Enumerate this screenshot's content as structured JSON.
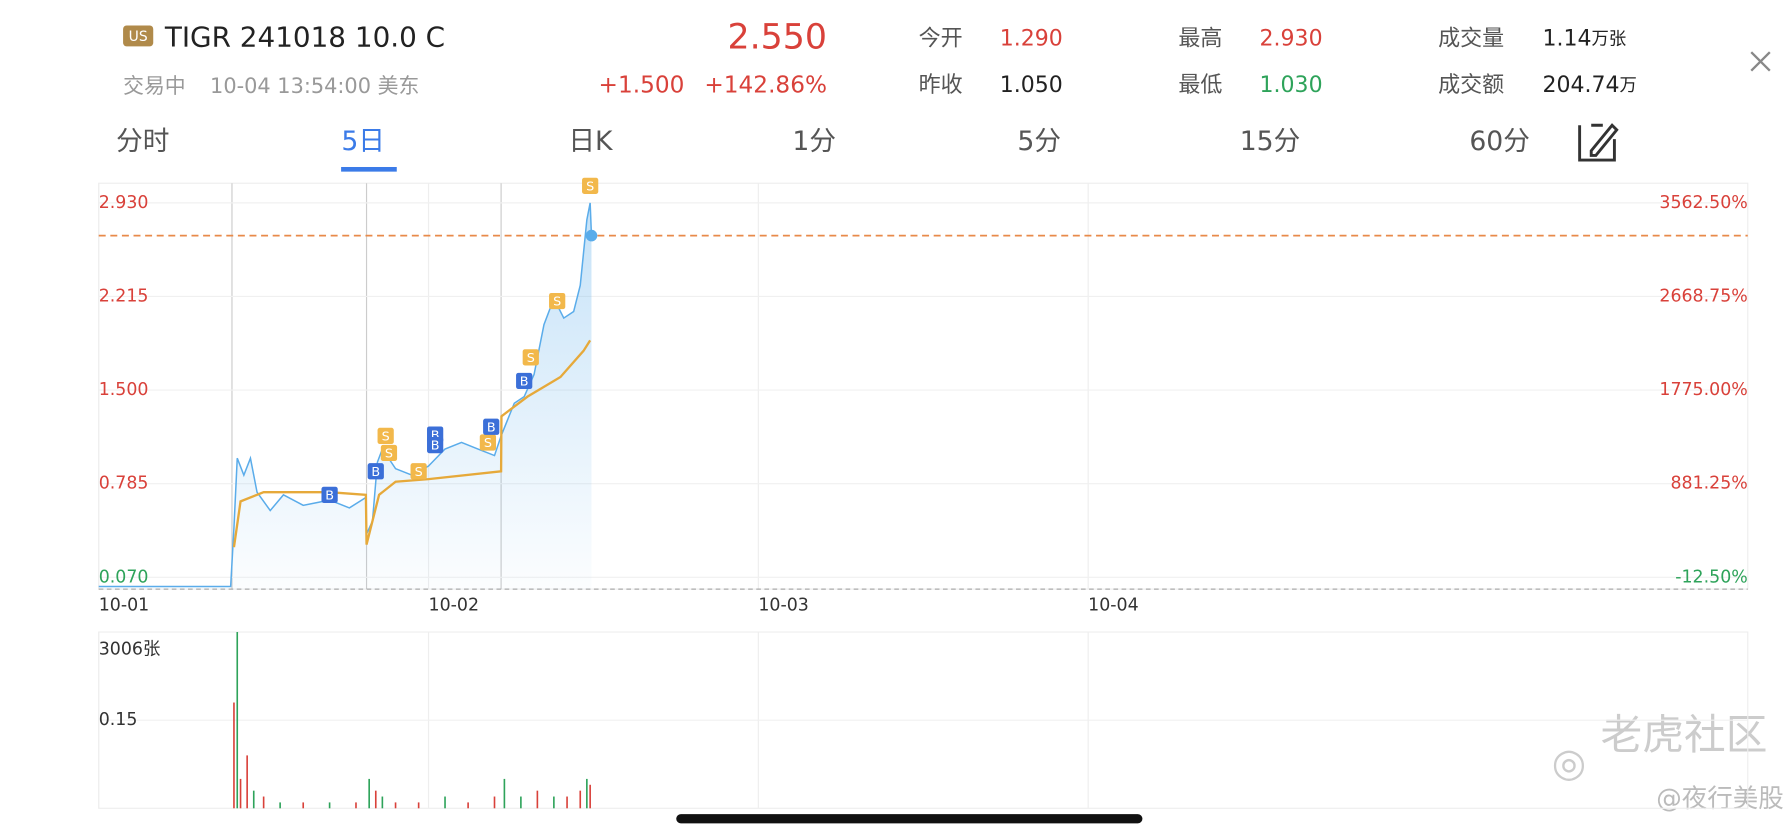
{
  "header": {
    "badge": "US",
    "symbol": "TIGR 241018 10.0 C",
    "status": "交易中",
    "time": "10-04 13:54:00 美东",
    "price": "2.550",
    "change": "+1.500",
    "change_pct": "+142.86%",
    "stats": [
      {
        "label": "今开",
        "value": "1.290",
        "color": "#d9413a"
      },
      {
        "label": "昨收",
        "value": "1.050",
        "color": "#222222"
      },
      {
        "label": "最高",
        "value": "2.930",
        "color": "#d9413a"
      },
      {
        "label": "最低",
        "value": "1.030",
        "color": "#2ea35a"
      },
      {
        "label": "成交量",
        "value": "1.14",
        "unit": "万张",
        "color": "#222222"
      },
      {
        "label": "成交额",
        "value": "204.74",
        "unit": "万",
        "color": "#222222"
      }
    ]
  },
  "tabs": [
    "分时",
    "5日",
    "日K",
    "1分",
    "5分",
    "15分",
    "60分"
  ],
  "active_tab": 1,
  "chart_data": [
    {
      "type": "line",
      "xlim": [
        0,
        5
      ],
      "xticks": [
        {
          "value": 0,
          "label": "10-01"
        },
        {
          "value": 1,
          "label": "10-02"
        },
        {
          "value": 2,
          "label": "10-03"
        },
        {
          "value": 3,
          "label": "10-04"
        }
      ],
      "ylim": [
        -0.02,
        3.08
      ],
      "yticks": [
        {
          "value": 0.07,
          "label": "0.070"
        },
        {
          "value": 0.785,
          "label": "0.785"
        },
        {
          "value": 1.5,
          "label": "1.500"
        },
        {
          "value": 2.215,
          "label": "2.215"
        },
        {
          "value": 2.93,
          "label": "2.930"
        }
      ],
      "y2lim": [
        -125,
        3750
      ],
      "y2ticks": [
        {
          "value": -12.5,
          "label": "-12.50%"
        },
        {
          "value": 881.25,
          "label": "881.25%"
        },
        {
          "value": 1775,
          "label": "1775.00%"
        },
        {
          "value": 2668.75,
          "label": "2668.75%"
        },
        {
          "value": 3562.5,
          "label": "3562.50%"
        }
      ],
      "grid": true,
      "series": [
        {
          "color": "#5aacea",
          "x": [
            0,
            0.4,
            0.41,
            0.42,
            0.44,
            0.46,
            0.48,
            0.52,
            0.56,
            0.62,
            0.7,
            0.76,
            0.81,
            0.812,
            0.83,
            0.845,
            0.86,
            0.9,
            0.95,
            1.0,
            1.05,
            1.1,
            1.15,
            1.2,
            1.22,
            1.26,
            1.29,
            1.32,
            1.35,
            1.38,
            1.41,
            1.44,
            1.46,
            1.48,
            1.49,
            1.494
          ],
          "values": [
            0.0,
            0.0,
            0.45,
            0.98,
            0.85,
            0.98,
            0.72,
            0.58,
            0.7,
            0.62,
            0.66,
            0.6,
            0.68,
            0.4,
            0.5,
            0.95,
            1.05,
            0.9,
            0.85,
            0.92,
            1.05,
            1.1,
            1.05,
            1.0,
            1.15,
            1.4,
            1.45,
            1.62,
            2.0,
            2.2,
            2.05,
            2.1,
            2.3,
            2.8,
            2.93,
            2.68
          ]
        },
        {
          "color": "#e6a93a",
          "x": [
            0.41,
            0.43,
            0.5,
            0.7,
            0.81,
            0.812,
            0.85,
            0.9,
            1.0,
            1.22,
            1.221,
            1.3,
            1.4,
            1.47,
            1.49
          ],
          "values": [
            0.3,
            0.65,
            0.72,
            0.72,
            0.7,
            0.32,
            0.7,
            0.8,
            0.82,
            0.88,
            1.3,
            1.45,
            1.6,
            1.8,
            1.88
          ]
        }
      ],
      "markers": [
        {
          "label": "B",
          "x": 0.7,
          "y": 0.7
        },
        {
          "label": "B",
          "x": 0.84,
          "y": 0.88
        },
        {
          "label": "S",
          "x": 0.87,
          "y": 1.15
        },
        {
          "label": "S",
          "x": 0.88,
          "y": 1.02
        },
        {
          "label": "S",
          "x": 0.97,
          "y": 0.88
        },
        {
          "label": "B",
          "x": 1.02,
          "y": 1.16
        },
        {
          "label": "B",
          "x": 1.02,
          "y": 1.08
        },
        {
          "label": "S",
          "x": 1.18,
          "y": 1.1
        },
        {
          "label": "B",
          "x": 1.19,
          "y": 1.22
        },
        {
          "label": "B",
          "x": 1.29,
          "y": 1.57
        },
        {
          "label": "S",
          "x": 1.31,
          "y": 1.75
        },
        {
          "label": "S",
          "x": 1.39,
          "y": 2.18
        },
        {
          "label": "S",
          "x": 1.49,
          "y": 3.06
        }
      ]
    },
    {
      "type": "bar",
      "max_label": "3006张",
      "xlim": [
        0,
        5
      ],
      "ylim": [
        0,
        0.3
      ],
      "yticks": [
        0.15
      ],
      "colors": [
        "#d9413a",
        "#2ea35a"
      ],
      "x": [
        0.41,
        0.42,
        0.43,
        0.45,
        0.47,
        0.5,
        0.55,
        0.62,
        0.7,
        0.78,
        0.82,
        0.84,
        0.86,
        0.9,
        0.97,
        1.05,
        1.12,
        1.2,
        1.23,
        1.28,
        1.33,
        1.38,
        1.42,
        1.46,
        1.48,
        1.49
      ],
      "values": [
        0.18,
        0.3,
        0.05,
        0.09,
        0.03,
        0.02,
        0.01,
        0.01,
        0.01,
        0.01,
        0.05,
        0.03,
        0.02,
        0.01,
        0.01,
        0.02,
        0.01,
        0.02,
        0.05,
        0.02,
        0.03,
        0.02,
        0.02,
        0.03,
        0.05,
        0.04
      ],
      "directions": [
        0,
        1,
        0,
        0,
        1,
        0,
        1,
        0,
        1,
        0,
        1,
        0,
        1,
        0,
        0,
        1,
        0,
        0,
        1,
        1,
        0,
        1,
        0,
        0,
        1,
        0
      ]
    }
  ],
  "watermark": "老虎社区",
  "watermark_author": "@夜行美股"
}
